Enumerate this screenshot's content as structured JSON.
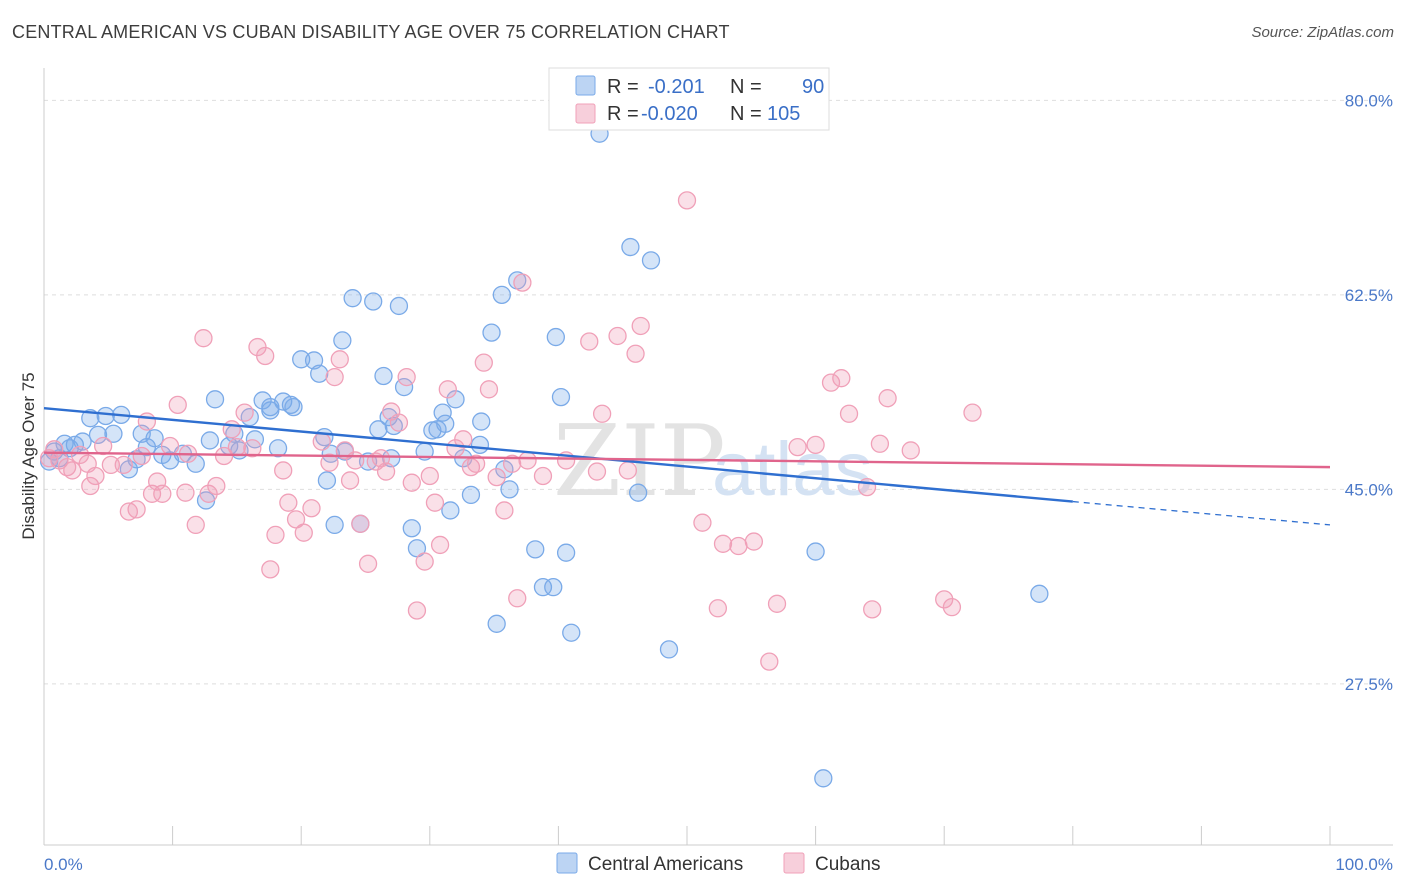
{
  "header": {
    "title": "CENTRAL AMERICAN VS CUBAN DISABILITY AGE OVER 75 CORRELATION CHART",
    "source": "Source: ZipAtlas.com"
  },
  "watermark": {
    "part1": "ZIP",
    "part2": "atlas"
  },
  "legend": {
    "r_label": "R =",
    "n_label": "N =",
    "rows": [
      {
        "r": "-0.201",
        "n": "90",
        "color": "#7aaae8"
      },
      {
        "r": "-0.020",
        "n": "105",
        "color": "#f0a0b8"
      }
    ]
  },
  "bottom_legend": [
    {
      "label": "Central Americans",
      "color": "#7aaae8"
    },
    {
      "label": "Cubans",
      "color": "#f0a0b8"
    }
  ],
  "chart_data": {
    "type": "scatter",
    "title": "CENTRAL AMERICAN VS CUBAN DISABILITY AGE OVER 75 CORRELATION CHART",
    "xlabel": "",
    "ylabel": "Disability Age Over 75",
    "xlim": [
      0,
      100
    ],
    "ylim": [
      13,
      83
    ],
    "x_tick_labels": {
      "min": "0.0%",
      "max": "100.0%"
    },
    "x_minor_ticks": [
      10,
      20,
      30,
      40,
      50,
      60,
      70,
      80,
      90,
      100
    ],
    "y_ticks": [
      {
        "value": 80,
        "label": "80.0%"
      },
      {
        "value": 62.5,
        "label": "62.5%"
      },
      {
        "value": 45,
        "label": "45.0%"
      },
      {
        "value": 27.5,
        "label": "27.5%"
      }
    ],
    "series": [
      {
        "name": "Central Americans",
        "color": "#7aaae8",
        "line_color": "#2f6fd0",
        "trend": {
          "x0": 0,
          "y0": 52.3,
          "x1": 80,
          "y1": 43.9,
          "dash_to_x": 100,
          "dash_to_y": 41.8
        },
        "points": [
          [
            0.4,
            47.5
          ],
          [
            0.8,
            48.4
          ],
          [
            1.2,
            47.8
          ],
          [
            1.6,
            49.1
          ],
          [
            2.0,
            48.7
          ],
          [
            2.4,
            49.0
          ],
          [
            3.0,
            49.3
          ],
          [
            3.6,
            51.4
          ],
          [
            4.2,
            49.9
          ],
          [
            4.8,
            51.6
          ],
          [
            5.4,
            50.0
          ],
          [
            6.0,
            51.7
          ],
          [
            6.6,
            46.8
          ],
          [
            7.2,
            47.7
          ],
          [
            7.6,
            50.0
          ],
          [
            8.0,
            48.8
          ],
          [
            8.6,
            49.6
          ],
          [
            9.2,
            48.1
          ],
          [
            9.8,
            47.6
          ],
          [
            10.8,
            48.2
          ],
          [
            11.8,
            47.3
          ],
          [
            12.6,
            44.0
          ],
          [
            12.9,
            49.4
          ],
          [
            13.3,
            53.1
          ],
          [
            14.4,
            48.9
          ],
          [
            14.8,
            50.0
          ],
          [
            15.2,
            48.5
          ],
          [
            16.0,
            51.5
          ],
          [
            16.4,
            49.5
          ],
          [
            17.0,
            53.0
          ],
          [
            17.6,
            52.4
          ],
          [
            18.2,
            48.7
          ],
          [
            18.6,
            52.9
          ],
          [
            19.2,
            52.6
          ],
          [
            19.4,
            52.4
          ],
          [
            20.0,
            56.7
          ],
          [
            21.0,
            56.6
          ],
          [
            21.4,
            55.4
          ],
          [
            21.8,
            49.7
          ],
          [
            22.0,
            45.8
          ],
          [
            22.6,
            41.8
          ],
          [
            23.2,
            58.4
          ],
          [
            23.4,
            48.4
          ],
          [
            24.0,
            62.2
          ],
          [
            24.6,
            41.9
          ],
          [
            25.2,
            47.5
          ],
          [
            25.6,
            61.9
          ],
          [
            26.0,
            50.4
          ],
          [
            26.4,
            55.2
          ],
          [
            26.8,
            51.5
          ],
          [
            27.2,
            50.7
          ],
          [
            27.6,
            61.5
          ],
          [
            28.0,
            54.2
          ],
          [
            28.6,
            41.5
          ],
          [
            29.0,
            39.7
          ],
          [
            29.6,
            48.4
          ],
          [
            30.2,
            50.3
          ],
          [
            30.6,
            50.4
          ],
          [
            31.0,
            51.9
          ],
          [
            31.6,
            43.1
          ],
          [
            32.0,
            53.1
          ],
          [
            32.6,
            47.8
          ],
          [
            33.2,
            44.5
          ],
          [
            34.0,
            51.1
          ],
          [
            34.8,
            59.1
          ],
          [
            35.2,
            32.9
          ],
          [
            35.6,
            62.5
          ],
          [
            35.8,
            46.8
          ],
          [
            36.2,
            45.0
          ],
          [
            36.8,
            63.8
          ],
          [
            38.2,
            39.6
          ],
          [
            38.8,
            36.2
          ],
          [
            39.6,
            36.2
          ],
          [
            39.8,
            58.7
          ],
          [
            40.2,
            53.3
          ],
          [
            40.6,
            39.3
          ],
          [
            41.0,
            32.1
          ],
          [
            43.2,
            77.0
          ],
          [
            45.6,
            66.8
          ],
          [
            46.2,
            44.7
          ],
          [
            47.2,
            65.6
          ],
          [
            48.6,
            30.6
          ],
          [
            60.0,
            39.4
          ],
          [
            60.6,
            19.0
          ],
          [
            77.4,
            35.6
          ],
          [
            17.6,
            52.1
          ],
          [
            22.3,
            48.2
          ],
          [
            27.0,
            47.8
          ],
          [
            31.2,
            50.9
          ],
          [
            33.9,
            49.0
          ]
        ]
      },
      {
        "name": "Cubans",
        "color": "#f0a0b8",
        "line_color": "#e0648c",
        "trend": {
          "x0": 0,
          "y0": 48.3,
          "x1": 100,
          "y1": 47.0
        },
        "points": [
          [
            0.4,
            47.8
          ],
          [
            0.8,
            48.6
          ],
          [
            1.2,
            47.6
          ],
          [
            1.8,
            47.0
          ],
          [
            2.2,
            46.7
          ],
          [
            2.8,
            48.1
          ],
          [
            3.4,
            47.3
          ],
          [
            3.6,
            45.3
          ],
          [
            4.0,
            46.2
          ],
          [
            4.6,
            48.9
          ],
          [
            5.2,
            47.2
          ],
          [
            6.2,
            47.2
          ],
          [
            6.6,
            43.0
          ],
          [
            7.2,
            43.2
          ],
          [
            7.6,
            48.0
          ],
          [
            8.0,
            51.1
          ],
          [
            8.4,
            44.6
          ],
          [
            8.8,
            45.7
          ],
          [
            9.2,
            44.6
          ],
          [
            9.8,
            48.9
          ],
          [
            10.4,
            52.6
          ],
          [
            11.0,
            44.7
          ],
          [
            11.2,
            48.2
          ],
          [
            11.8,
            41.8
          ],
          [
            12.4,
            58.6
          ],
          [
            12.8,
            44.6
          ],
          [
            13.4,
            45.3
          ],
          [
            14.0,
            48.0
          ],
          [
            14.6,
            50.4
          ],
          [
            15.0,
            48.8
          ],
          [
            15.6,
            51.9
          ],
          [
            16.2,
            48.7
          ],
          [
            16.6,
            57.8
          ],
          [
            17.2,
            57.0
          ],
          [
            17.6,
            37.8
          ],
          [
            18.0,
            40.9
          ],
          [
            18.6,
            46.7
          ],
          [
            19.0,
            43.8
          ],
          [
            19.6,
            42.3
          ],
          [
            20.2,
            41.1
          ],
          [
            20.8,
            43.3
          ],
          [
            21.6,
            49.3
          ],
          [
            22.2,
            47.4
          ],
          [
            22.6,
            55.1
          ],
          [
            23.0,
            56.7
          ],
          [
            23.4,
            48.5
          ],
          [
            23.8,
            45.8
          ],
          [
            24.2,
            47.6
          ],
          [
            24.6,
            41.9
          ],
          [
            25.2,
            38.3
          ],
          [
            25.8,
            47.5
          ],
          [
            26.2,
            47.8
          ],
          [
            26.6,
            46.6
          ],
          [
            27.0,
            52.0
          ],
          [
            27.6,
            51.0
          ],
          [
            28.2,
            55.1
          ],
          [
            28.6,
            45.6
          ],
          [
            29.0,
            34.1
          ],
          [
            29.6,
            38.5
          ],
          [
            30.0,
            46.2
          ],
          [
            30.4,
            43.8
          ],
          [
            30.8,
            40.0
          ],
          [
            31.4,
            54.0
          ],
          [
            32.0,
            48.7
          ],
          [
            32.6,
            49.5
          ],
          [
            33.2,
            47.0
          ],
          [
            33.6,
            47.3
          ],
          [
            34.2,
            56.4
          ],
          [
            34.6,
            54.0
          ],
          [
            35.2,
            46.1
          ],
          [
            35.8,
            43.1
          ],
          [
            36.4,
            47.3
          ],
          [
            36.8,
            35.2
          ],
          [
            37.2,
            63.6
          ],
          [
            37.6,
            47.6
          ],
          [
            38.8,
            46.2
          ],
          [
            40.6,
            47.6
          ],
          [
            42.4,
            58.3
          ],
          [
            43.0,
            46.6
          ],
          [
            43.4,
            51.8
          ],
          [
            44.6,
            58.8
          ],
          [
            45.4,
            46.7
          ],
          [
            46.0,
            57.2
          ],
          [
            46.4,
            59.7
          ],
          [
            50.0,
            71.0
          ],
          [
            51.2,
            42.0
          ],
          [
            52.4,
            34.3
          ],
          [
            52.8,
            40.1
          ],
          [
            54.0,
            39.9
          ],
          [
            55.2,
            40.3
          ],
          [
            56.4,
            29.5
          ],
          [
            57.0,
            34.7
          ],
          [
            58.6,
            48.8
          ],
          [
            60.0,
            49.0
          ],
          [
            61.2,
            54.6
          ],
          [
            62.0,
            55.0
          ],
          [
            62.6,
            51.8
          ],
          [
            64.0,
            45.2
          ],
          [
            64.4,
            34.2
          ],
          [
            65.0,
            49.1
          ],
          [
            65.6,
            53.2
          ],
          [
            67.4,
            48.5
          ],
          [
            70.0,
            35.1
          ],
          [
            70.6,
            34.4
          ],
          [
            72.2,
            51.9
          ]
        ]
      }
    ]
  }
}
